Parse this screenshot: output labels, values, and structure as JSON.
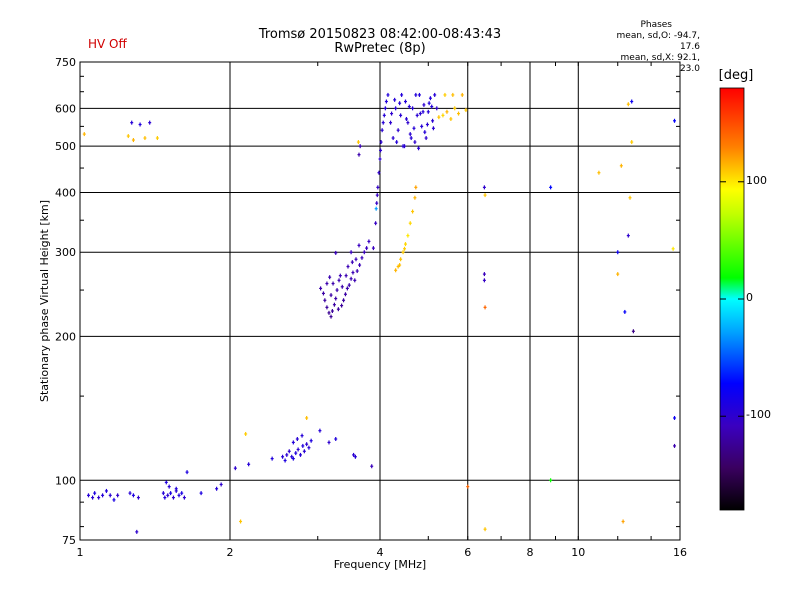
{
  "header": {
    "status": "HV Off",
    "title_line1": "Tromsø 20150823 08:42:00-08:43:43",
    "title_line2": "RwPretec (8p)",
    "phases_title": "Phases",
    "phases_o": "mean, sd,O: -94.7, 17.6",
    "phases_x": "mean, sd,X:  92.1, 23.0"
  },
  "colorbar": {
    "unit": "[deg]",
    "ticks": [
      "100",
      "0",
      "-100"
    ],
    "tick_values": [
      100,
      0,
      -100
    ],
    "range": [
      -180,
      180
    ]
  },
  "chart_data": {
    "type": "scatter",
    "title": "Tromsø 20150823 08:42:00-08:43:43",
    "subtitle": "RwPretec (8p)",
    "xlabel": "Frequency [MHz]",
    "ylabel": "Stationary phase Virtual Height [km]",
    "x_scale": "log",
    "y_scale": "log",
    "xlim": [
      1,
      16
    ],
    "ylim": [
      75,
      750
    ],
    "x_ticks": [
      1,
      2,
      4,
      6,
      8,
      10,
      16
    ],
    "y_ticks": [
      75,
      100,
      200,
      300,
      400,
      500,
      600,
      750
    ],
    "grid": true,
    "color_by": "phase (deg)",
    "series": [
      {
        "points": [
          [
            1.04,
            93,
            -95
          ],
          [
            1.06,
            92,
            -98
          ],
          [
            1.07,
            94,
            -90
          ],
          [
            1.09,
            92,
            -100
          ],
          [
            1.11,
            93,
            -95
          ],
          [
            1.13,
            95,
            -92
          ],
          [
            1.15,
            93,
            -97
          ],
          [
            1.17,
            91,
            -88
          ],
          [
            1.19,
            93,
            -102
          ],
          [
            1.26,
            94,
            -95
          ],
          [
            1.28,
            93,
            -90
          ],
          [
            1.31,
            92,
            -100
          ],
          [
            1.47,
            94,
            -95
          ],
          [
            1.48,
            92,
            -92
          ],
          [
            1.5,
            93,
            -98
          ],
          [
            1.52,
            94,
            -90
          ],
          [
            1.54,
            92,
            -100
          ],
          [
            1.56,
            95,
            -97
          ],
          [
            1.58,
            93,
            -92
          ],
          [
            1.6,
            94,
            -88
          ],
          [
            1.62,
            92,
            -100
          ],
          [
            1.51,
            97,
            -96
          ],
          [
            1.56,
            96,
            -94
          ],
          [
            1.49,
            99,
            -91
          ],
          [
            1.64,
            104,
            -90
          ],
          [
            1.88,
            96,
            -95
          ],
          [
            1.92,
            98,
            -100
          ],
          [
            1.3,
            78,
            -100
          ],
          [
            1.75,
            94,
            -90
          ],
          [
            2.05,
            106,
            -100
          ],
          [
            2.18,
            108,
            -95
          ],
          [
            2.43,
            111,
            -92
          ],
          [
            2.55,
            112,
            -95
          ],
          [
            2.58,
            110,
            -90
          ],
          [
            2.6,
            113,
            -98
          ],
          [
            2.63,
            115,
            -100
          ],
          [
            2.66,
            112,
            -95
          ],
          [
            2.68,
            111,
            -90
          ],
          [
            2.71,
            114,
            -92
          ],
          [
            2.74,
            116,
            -98
          ],
          [
            2.77,
            113,
            -95
          ],
          [
            2.8,
            118,
            -92
          ],
          [
            2.82,
            115,
            -97
          ],
          [
            2.85,
            119,
            -100
          ],
          [
            2.88,
            117,
            -95
          ],
          [
            2.91,
            121,
            -90
          ],
          [
            2.68,
            120,
            -93
          ],
          [
            2.73,
            122,
            -97
          ],
          [
            2.79,
            124,
            -95
          ],
          [
            3.03,
            127,
            -95
          ],
          [
            3.16,
            120,
            -100
          ],
          [
            3.26,
            122,
            -92
          ],
          [
            3.54,
            113,
            -98
          ],
          [
            3.57,
            112,
            -95
          ],
          [
            3.85,
            107,
            -110
          ],
          [
            3.04,
            252,
            -115
          ],
          [
            3.08,
            246,
            -118
          ],
          [
            3.1,
            238,
            -120
          ],
          [
            3.13,
            230,
            -122
          ],
          [
            3.16,
            224,
            -125
          ],
          [
            3.19,
            220,
            -124
          ],
          [
            3.21,
            226,
            -122
          ],
          [
            3.24,
            233,
            -119
          ],
          [
            3.26,
            240,
            -117
          ],
          [
            3.28,
            250,
            -115
          ],
          [
            3.31,
            262,
            -113
          ],
          [
            3.33,
            268,
            -112
          ],
          [
            3.35,
            232,
            -122
          ],
          [
            3.38,
            238,
            -120
          ],
          [
            3.41,
            245,
            -118
          ],
          [
            3.44,
            252,
            -116
          ],
          [
            3.47,
            256,
            -115
          ],
          [
            3.5,
            264,
            -113
          ],
          [
            3.53,
            272,
            -112
          ],
          [
            3.56,
            262,
            -114
          ],
          [
            3.6,
            274,
            -112
          ],
          [
            3.64,
            282,
            -111
          ],
          [
            3.68,
            292,
            -110
          ],
          [
            3.72,
            300,
            -109
          ],
          [
            3.76,
            306,
            -108
          ],
          [
            3.8,
            316,
            -107
          ],
          [
            3.13,
            258,
            -115
          ],
          [
            3.19,
            244,
            -118
          ],
          [
            3.22,
            258,
            -116
          ],
          [
            3.3,
            228,
            -121
          ],
          [
            3.36,
            254,
            -116
          ],
          [
            3.45,
            280,
            -112
          ],
          [
            3.52,
            286,
            -111
          ],
          [
            3.58,
            290,
            -110
          ],
          [
            3.26,
            299,
            -108
          ],
          [
            3.5,
            300,
            -108
          ],
          [
            3.88,
            306,
            -108
          ],
          [
            3.63,
            310,
            -108
          ],
          [
            3.17,
            266,
            -114
          ],
          [
            3.42,
            268,
            -113
          ],
          [
            3.92,
            345,
            -106
          ],
          [
            3.94,
            380,
            -105
          ],
          [
            3.96,
            410,
            -104
          ],
          [
            3.98,
            440,
            -102
          ],
          [
            4.0,
            470,
            -100
          ],
          [
            4.01,
            490,
            -99
          ],
          [
            4.02,
            510,
            -98
          ],
          [
            4.04,
            540,
            -97
          ],
          [
            4.06,
            560,
            -96
          ],
          [
            4.08,
            580,
            -95
          ],
          [
            4.1,
            600,
            -94
          ],
          [
            4.12,
            620,
            -93
          ],
          [
            4.15,
            640,
            -92
          ],
          [
            3.95,
            395,
            -105
          ],
          [
            3.93,
            370,
            -30
          ],
          [
            3.65,
            500,
            -110
          ],
          [
            3.63,
            480,
            -115
          ],
          [
            3.62,
            510,
            110
          ],
          [
            4.2,
            560,
            -100
          ],
          [
            4.25,
            520,
            -98
          ],
          [
            4.3,
            600,
            -95
          ],
          [
            4.35,
            540,
            -100
          ],
          [
            4.4,
            580,
            -97
          ],
          [
            4.45,
            500,
            -95
          ],
          [
            4.5,
            620,
            -93
          ],
          [
            4.55,
            560,
            -100
          ],
          [
            4.6,
            530,
            -98
          ],
          [
            4.65,
            600,
            -95
          ],
          [
            4.7,
            510,
            -100
          ],
          [
            4.75,
            580,
            -97
          ],
          [
            4.8,
            640,
            -93
          ],
          [
            4.85,
            550,
            -95
          ],
          [
            4.9,
            610,
            -98
          ],
          [
            4.95,
            520,
            -100
          ],
          [
            5.0,
            590,
            -95
          ],
          [
            5.05,
            630,
            -93
          ],
          [
            5.1,
            565,
            -98
          ],
          [
            5.15,
            640,
            -95
          ],
          [
            5.2,
            600,
            -100
          ],
          [
            4.28,
            625,
            -95
          ],
          [
            4.38,
            615,
            -95
          ],
          [
            4.48,
            500,
            -98
          ],
          [
            4.58,
            605,
            -93
          ],
          [
            4.68,
            545,
            -95
          ],
          [
            4.78,
            495,
            -98
          ],
          [
            4.88,
            590,
            -95
          ],
          [
            4.98,
            555,
            -97
          ],
          [
            5.08,
            605,
            -93
          ],
          [
            4.22,
            585,
            -100
          ],
          [
            4.32,
            510,
            -95
          ],
          [
            4.42,
            640,
            -93
          ],
          [
            4.52,
            570,
            -97
          ],
          [
            4.62,
            520,
            -95
          ],
          [
            4.72,
            640,
            -93
          ],
          [
            4.82,
            585,
            -98
          ],
          [
            4.92,
            535,
            -95
          ],
          [
            5.02,
            615,
            -93
          ],
          [
            5.12,
            545,
            -98
          ],
          [
            5.25,
            575,
            110
          ],
          [
            5.35,
            580,
            105
          ],
          [
            5.45,
            590,
            115
          ],
          [
            5.55,
            570,
            110
          ],
          [
            5.65,
            600,
            108
          ],
          [
            5.75,
            585,
            112
          ],
          [
            5.85,
            640,
            115
          ],
          [
            5.95,
            595,
            110
          ],
          [
            5.6,
            640,
            112
          ],
          [
            5.4,
            640,
            108
          ],
          [
            4.3,
            275,
            115
          ],
          [
            4.35,
            280,
            112
          ],
          [
            4.4,
            290,
            110
          ],
          [
            4.45,
            300,
            108
          ],
          [
            4.5,
            312,
            105
          ],
          [
            4.55,
            325,
            100
          ],
          [
            4.6,
            345,
            105
          ],
          [
            4.65,
            365,
            110
          ],
          [
            4.7,
            390,
            115
          ],
          [
            4.72,
            410,
            120
          ],
          [
            4.38,
            282,
            112
          ],
          [
            4.48,
            305,
            108
          ],
          [
            1.27,
            560,
            -95
          ],
          [
            1.32,
            555,
            -92
          ],
          [
            1.38,
            560,
            -98
          ],
          [
            1.25,
            525,
            110
          ],
          [
            1.28,
            515,
            115
          ],
          [
            1.35,
            520,
            112
          ],
          [
            1.43,
            520,
            108
          ],
          [
            1.02,
            530,
            115
          ],
          [
            2.1,
            82,
            110
          ],
          [
            2.15,
            125,
            108
          ],
          [
            2.85,
            135,
            112
          ],
          [
            6.48,
            410,
            -100
          ],
          [
            6.48,
            270,
            -110
          ],
          [
            6.48,
            262,
            -105
          ],
          [
            6.5,
            395,
            110
          ],
          [
            6.5,
            230,
            140
          ],
          [
            6.0,
            97,
            140
          ],
          [
            6.5,
            79,
            110
          ],
          [
            8.8,
            410,
            -70
          ],
          [
            8.8,
            100,
            20
          ],
          [
            11.0,
            440,
            112
          ],
          [
            12.0,
            300,
            -80
          ],
          [
            12.0,
            270,
            115
          ],
          [
            12.3,
            82,
            120
          ],
          [
            12.6,
            612,
            112
          ],
          [
            12.8,
            620,
            -80
          ],
          [
            12.2,
            455,
            115
          ],
          [
            12.7,
            390,
            110
          ],
          [
            12.6,
            325,
            -100
          ],
          [
            12.4,
            225,
            -75
          ],
          [
            12.9,
            205,
            -130
          ],
          [
            15.6,
            565,
            -75
          ],
          [
            15.6,
            135,
            -80
          ],
          [
            15.6,
            118,
            -115
          ],
          [
            15.5,
            305,
            100
          ],
          [
            12.8,
            510,
            108
          ]
        ]
      }
    ]
  }
}
